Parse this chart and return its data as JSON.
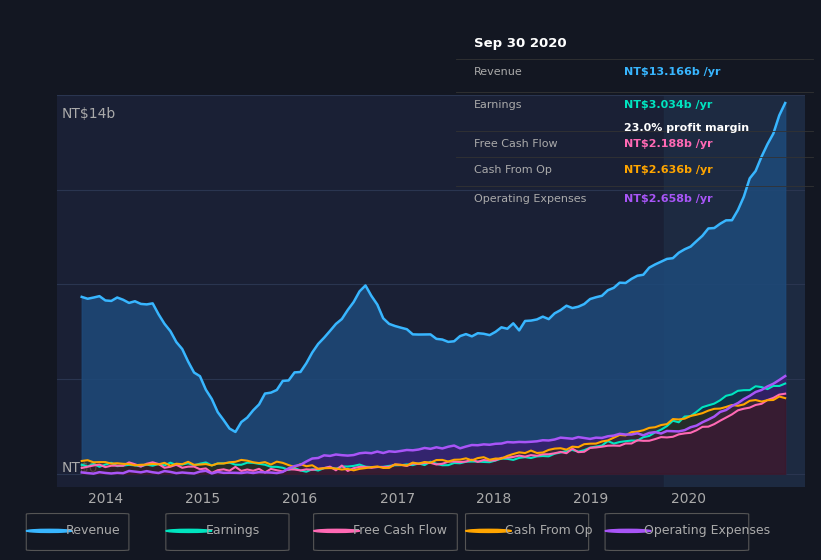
{
  "bg_color": "#131722",
  "plot_bg_color": "#1a2035",
  "highlight_bg_color": "#1e2d45",
  "grid_color": "#2a3550",
  "text_color": "#aaaaaa",
  "title_color": "#ffffff",
  "ylabel_text": "NT$14b",
  "y0_text": "NT$0",
  "ymax": 14,
  "xmin": 2013.5,
  "xmax": 2021.2,
  "tooltip": {
    "title": "Sep 30 2020",
    "rows": [
      {
        "label": "Revenue",
        "value": "NT$13.166b /yr",
        "color": "#38b6ff"
      },
      {
        "label": "Earnings",
        "value": "NT$3.034b /yr",
        "color": "#00e5c0"
      },
      {
        "label": "profit_margin",
        "value": "23.0% profit margin",
        "color": "#ffffff"
      },
      {
        "label": "Free Cash Flow",
        "value": "NT$2.188b /yr",
        "color": "#ff69b4"
      },
      {
        "label": "Cash From Op",
        "value": "NT$2.636b /yr",
        "color": "#ffa500"
      },
      {
        "label": "Operating Expenses",
        "value": "NT$2.658b /yr",
        "color": "#a855f7"
      }
    ]
  },
  "legend": [
    {
      "label": "Revenue",
      "color": "#38b6ff"
    },
    {
      "label": "Earnings",
      "color": "#00e5c0"
    },
    {
      "label": "Free Cash Flow",
      "color": "#ff69b4"
    },
    {
      "label": "Cash From Op",
      "color": "#ffa500"
    },
    {
      "label": "Operating Expenses",
      "color": "#a855f7"
    }
  ],
  "revenue_color": "#38b6ff",
  "earnings_color": "#00e5c0",
  "fcf_color": "#ff69b4",
  "cashop_color": "#ffa500",
  "opex_color": "#a855f7",
  "revenue_fill": "#1e4a7a",
  "x_ticks": [
    2014,
    2015,
    2016,
    2017,
    2018,
    2019,
    2020
  ]
}
